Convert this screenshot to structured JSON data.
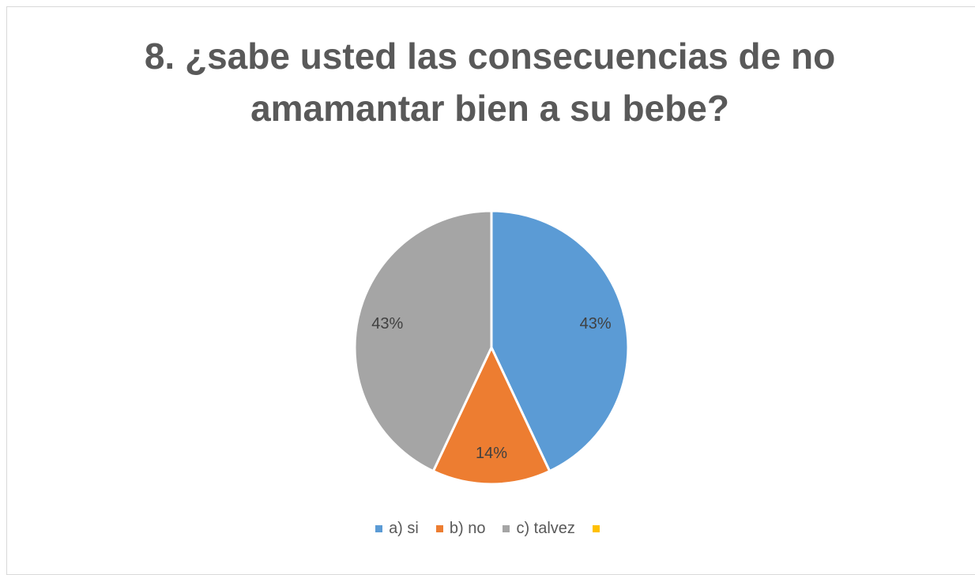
{
  "chart_data": {
    "type": "pie",
    "title": "8. ¿sabe usted las consecuencias de no amamantar bien a su bebe?",
    "categories": [
      "a) si",
      "b) no",
      "c) talvez",
      null
    ],
    "values": [
      43,
      14,
      43,
      0
    ],
    "value_labels": [
      "43%",
      "14%",
      "43%",
      null
    ],
    "colors": [
      "#5b9bd5",
      "#ed7d31",
      "#a5a5a5",
      "#ffc000"
    ],
    "legend": "bottom"
  }
}
